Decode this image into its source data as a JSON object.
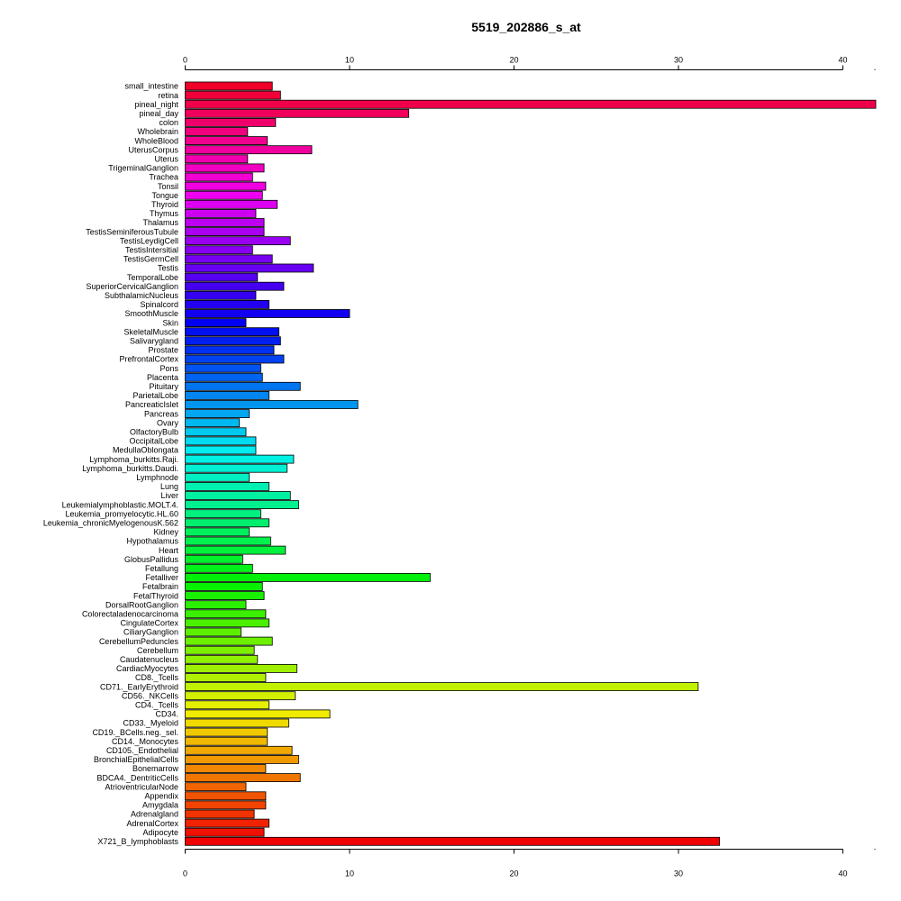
{
  "chart_data": {
    "type": "bar",
    "orientation": "horizontal",
    "title": "5519_202886_s_at",
    "xlim": [
      0,
      42
    ],
    "xticks": [
      0,
      10,
      20,
      30,
      40
    ],
    "grid": false,
    "legend": "none",
    "categories": [
      "small_intestine",
      "retina",
      "pineal_night",
      "pineal_day",
      "colon",
      "Wholebrain",
      "WholeBlood",
      "UterusCorpus",
      "Uterus",
      "TrigeminalGanglion",
      "Trachea",
      "Tonsil",
      "Tongue",
      "Thyroid",
      "Thymus",
      "Thalamus",
      "TestisSeminiferousTubule",
      "TestisLeydigCell",
      "TestisIntersitial",
      "TestisGermCell",
      "Testis",
      "TemporalLobe",
      "SuperiorCervicalGanglion",
      "SubthalamicNucleus",
      "Spinalcord",
      "SmoothMuscle",
      "Skin",
      "SkeletalMuscle",
      "Salivarygland",
      "Prostate",
      "PrefrontalCortex",
      "Pons",
      "Placenta",
      "Pituitary",
      "ParietalLobe",
      "PancreaticIslet",
      "Pancreas",
      "Ovary",
      "OlfactoryBulb",
      "OccipitalLobe",
      "MedullaOblongata",
      "Lymphoma_burkitts.Raji.",
      "Lymphoma_burkitts.Daudi.",
      "Lymphnode",
      "Lung",
      "Liver",
      "Leukemialymphoblastic.MOLT.4.",
      "Leukemia_promyelocytic.HL.60",
      "Leukemia_chronicMyelogenousK.562",
      "Kidney",
      "Hypothalamus",
      "Heart",
      "GlobusPallidus",
      "Fetallung",
      "Fetalliver",
      "Fetalbrain",
      "FetalThyroid",
      "DorsalRootGanglion",
      "Colorectaladenocarcinoma",
      "CingulateCortex",
      "CiliaryGanglion",
      "CerebellumPeduncles",
      "Cerebellum",
      "Caudatenucleus",
      "CardiacMyocytes",
      "CD8._Tcells",
      "CD71._EarlyErythroid",
      "CD56._NKCells",
      "CD4._Tcells",
      "CD34.",
      "CD33._Myeloid",
      "CD19._BCells.neg._sel.",
      "CD14._Monocytes",
      "CD105._Endothelial",
      "BronchialEpithelialCells",
      "Bonemarrow",
      "BDCA4._DentriticCells",
      "AtrioventricularNode",
      "Appendix",
      "Amygdala",
      "Adrenalgland",
      "AdrenalCortex",
      "Adipocyte",
      "X721_B_lymphoblasts"
    ],
    "values": [
      5.3,
      5.8,
      42.0,
      13.6,
      5.5,
      3.8,
      5.0,
      7.7,
      3.8,
      4.8,
      4.1,
      4.9,
      4.7,
      5.6,
      4.3,
      4.8,
      4.8,
      6.4,
      4.1,
      5.3,
      7.8,
      4.4,
      6.0,
      4.3,
      5.1,
      10.0,
      3.7,
      5.7,
      5.8,
      5.4,
      6.0,
      4.6,
      4.7,
      7.0,
      5.1,
      10.5,
      3.9,
      3.3,
      3.7,
      4.3,
      4.3,
      6.6,
      6.2,
      3.9,
      5.1,
      6.4,
      6.9,
      4.6,
      5.1,
      3.9,
      5.2,
      6.1,
      3.5,
      4.1,
      14.9,
      4.7,
      4.8,
      3.7,
      4.9,
      5.1,
      3.4,
      5.3,
      4.2,
      4.4,
      6.8,
      4.9,
      31.2,
      6.7,
      5.1,
      8.8,
      6.3,
      5.0,
      5.0,
      6.5,
      6.9,
      4.9,
      7.0,
      3.7,
      4.9,
      4.9,
      4.2,
      5.1,
      4.8,
      32.5
    ]
  }
}
